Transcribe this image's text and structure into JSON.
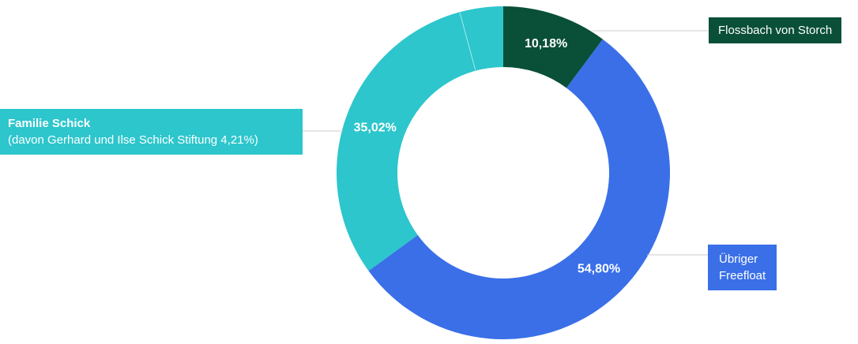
{
  "chart_data": {
    "type": "pie",
    "style": "donut",
    "title": "",
    "unit": "%",
    "legend_position": "callouts",
    "segments": [
      {
        "label": "Flossbach von Storch",
        "value": 10.18,
        "display_value": "10,18%",
        "color": "#0A4F38"
      },
      {
        "label": "Übriger Freefloat",
        "value": 54.8,
        "display_value": "54,80%",
        "color": "#3A6FE8"
      },
      {
        "label": "Familie Schick",
        "value": 35.02,
        "display_value": "35,02%",
        "color": "#2CC6CC",
        "sub_label": "davon Gerhard und Ilse Schick Stiftung",
        "sub_value": 4.21
      }
    ]
  },
  "callouts": {
    "flossbach": {
      "text": "Flossbach von Storch",
      "bg": "#0A4F38"
    },
    "familie": {
      "title": "Familie Schick",
      "subtitle": "(davon Gerhard und Ilse Schick Stiftung 4,21%)",
      "bg": "#2CC6CC"
    },
    "freefloat": {
      "line1": "Übriger",
      "line2": "Freefloat",
      "bg": "#3A6FE8"
    }
  },
  "colors": {
    "leader_line": "#cccccc",
    "sub_divider": "rgba(255,255,255,0.6)",
    "background": "#ffffff",
    "label_text": "#ffffff"
  }
}
